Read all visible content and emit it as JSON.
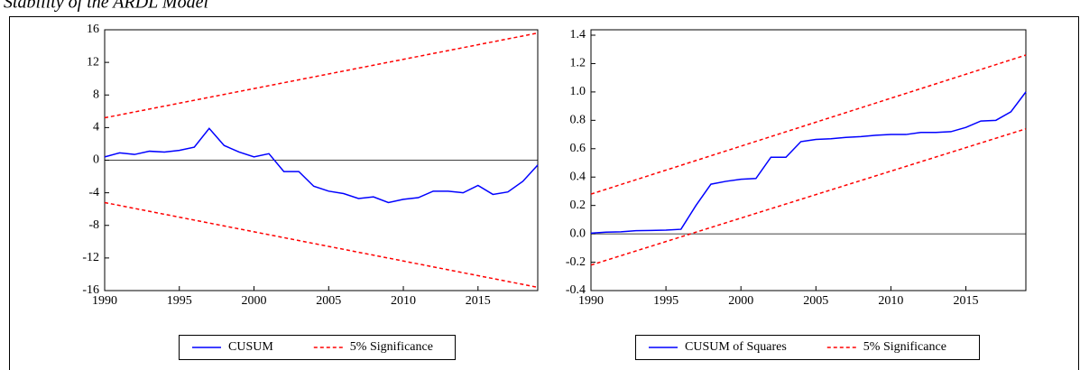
{
  "title": "Stability of the ARDL Model",
  "chart_data": [
    {
      "type": "line",
      "x": [
        1990,
        1991,
        1992,
        1993,
        1994,
        1995,
        1996,
        1997,
        1998,
        1999,
        2000,
        2001,
        2002,
        2003,
        2004,
        2005,
        2006,
        2007,
        2008,
        2009,
        2010,
        2011,
        2012,
        2013,
        2014,
        2015,
        2016,
        2017,
        2018,
        2019
      ],
      "series": [
        {
          "name": "CUSUM",
          "color": "#0000ff",
          "values": [
            0.4,
            0.9,
            0.7,
            1.1,
            1.0,
            1.2,
            1.6,
            3.9,
            1.8,
            1.0,
            0.4,
            0.8,
            -1.4,
            -1.4,
            -3.2,
            -3.8,
            -4.1,
            -4.7,
            -4.5,
            -5.2,
            -4.8,
            -4.6,
            -3.8,
            -3.8,
            -4.0,
            -3.1,
            -4.2,
            -3.9,
            -2.6,
            -0.6
          ]
        },
        {
          "name": "5% Significance",
          "color": "#ff0000",
          "dashed": true,
          "x": [
            1990,
            2019
          ],
          "values": [
            5.2,
            15.6
          ],
          "lower_values": [
            -5.2,
            -15.6
          ]
        }
      ],
      "xlim": [
        1990,
        2019
      ],
      "xticks": [
        1990,
        1995,
        2000,
        2005,
        2010,
        2015
      ],
      "ylim": [
        -16,
        16
      ],
      "yticks": [
        -16,
        -12,
        -8,
        -4,
        0,
        4,
        8,
        12,
        16
      ],
      "hline": 0
    },
    {
      "type": "line",
      "x": [
        1990,
        1991,
        1992,
        1993,
        1994,
        1995,
        1996,
        1997,
        1998,
        1999,
        2000,
        2001,
        2002,
        2003,
        2004,
        2005,
        2006,
        2007,
        2008,
        2009,
        2010,
        2011,
        2012,
        2013,
        2014,
        2015,
        2016,
        2017,
        2018,
        2019
      ],
      "series": [
        {
          "name": "CUSUM of Squares",
          "color": "#0000ff",
          "values": [
            0.005,
            0.012,
            0.014,
            0.022,
            0.024,
            0.026,
            0.032,
            0.2,
            0.35,
            0.37,
            0.385,
            0.39,
            0.54,
            0.54,
            0.65,
            0.665,
            0.67,
            0.68,
            0.685,
            0.695,
            0.7,
            0.7,
            0.715,
            0.715,
            0.72,
            0.75,
            0.795,
            0.8,
            0.86,
            1.0
          ]
        },
        {
          "name": "5% Significance",
          "color": "#ff0000",
          "dashed": true,
          "x": [
            1990,
            2019
          ],
          "values": [
            0.28,
            1.26
          ],
          "lower_values": [
            -0.22,
            0.74
          ]
        }
      ],
      "xlim": [
        1990,
        2019
      ],
      "xticks": [
        1990,
        1995,
        2000,
        2005,
        2010,
        2015
      ],
      "ylim": [
        -0.4,
        1.4
      ],
      "yticks": [
        -0.4,
        -0.2,
        {
          "value": 0,
          "label": "0.0"
        },
        0.2,
        0.4,
        0.6,
        0.8,
        {
          "value": 1,
          "label": "1.0"
        },
        1.2,
        1.4
      ],
      "hline": 0
    }
  ]
}
